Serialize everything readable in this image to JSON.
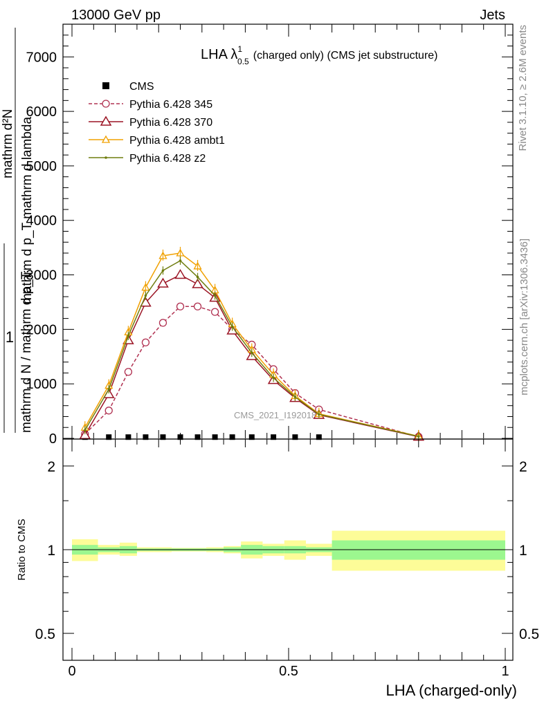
{
  "header": {
    "energy": "13000 GeV pp",
    "category": "Jets"
  },
  "side_labels": {
    "rivet": "Rivet 3.1.10, ≥ 2.6M events",
    "mcplots": "mcplots.cern.ch [arXiv:1306.3436]"
  },
  "chart_data": [
    {
      "type": "line",
      "title_main": "LHA λ",
      "title_sup": "1",
      "title_sub": "0.5",
      "title_rest": "(charged only) (CMS jet substructure)",
      "ylabel_top": "mathrm d²N",
      "ylabel_bottom": "mathrm d p_T mathrm d lambda",
      "ylabel_prefix": "1",
      "ylabel_prefix_den": "mathrm d N / mathrm d p_T",
      "ylim": [
        0,
        7600
      ],
      "yticks": [
        "0",
        "1000",
        "2000",
        "3000",
        "4000",
        "5000",
        "6000",
        "7000"
      ],
      "watermark": "CMS_2021_I1920187",
      "legend_position": "top-left",
      "x": [
        0.03,
        0.085,
        0.13,
        0.17,
        0.21,
        0.25,
        0.29,
        0.33,
        0.37,
        0.415,
        0.465,
        0.515,
        0.57,
        0.8
      ],
      "series": [
        {
          "name": "CMS",
          "marker": "square",
          "color": "#000000",
          "values": [
            10,
            10,
            10,
            10,
            10,
            10,
            10,
            10,
            10,
            10,
            10,
            10,
            10,
            null
          ]
        },
        {
          "name": "Pythia 6.428 345",
          "marker": "circle",
          "dash": true,
          "color": "#b03050",
          "values": [
            80,
            510,
            1220,
            1760,
            2120,
            2420,
            2420,
            2320,
            2000,
            1720,
            1270,
            830,
            530,
            30
          ]
        },
        {
          "name": "Pythia 6.428 370",
          "marker": "triangle",
          "color": "#9b1424",
          "values": [
            60,
            810,
            1800,
            2490,
            2840,
            3000,
            2830,
            2580,
            1980,
            1510,
            1070,
            740,
            430,
            30
          ]
        },
        {
          "name": "Pythia 6.428 ambt1",
          "marker": "triangle-small",
          "color": "#f0a000",
          "values": [
            200,
            970,
            1950,
            2770,
            3350,
            3400,
            3160,
            2720,
            2100,
            1630,
            1170,
            780,
            450,
            40
          ]
        },
        {
          "name": "Pythia 6.428 z2",
          "marker": "dot",
          "color": "#6f7d0f",
          "values": [
            150,
            900,
            1880,
            2620,
            3080,
            3260,
            2960,
            2620,
            2050,
            1570,
            1110,
            760,
            440,
            35
          ]
        }
      ]
    },
    {
      "type": "area",
      "ylabel": "Ratio to CMS",
      "xlabel": "LHA (charged-only)",
      "scale": "log",
      "ylim": [
        0.4,
        2.5
      ],
      "yticks": [
        "0.5",
        "1",
        "2"
      ],
      "xticks": [
        "0",
        "0.5",
        "1"
      ],
      "bins": [
        0,
        0.06,
        0.11,
        0.15,
        0.19,
        0.23,
        0.27,
        0.31,
        0.35,
        0.39,
        0.44,
        0.49,
        0.54,
        0.6,
        1.0
      ],
      "band_inner_low": [
        0.96,
        0.98,
        0.97,
        0.99,
        0.99,
        0.99,
        0.99,
        0.99,
        0.98,
        0.96,
        0.97,
        0.97,
        0.98,
        0.92
      ],
      "band_inner_high": [
        1.04,
        1.02,
        1.03,
        1.01,
        1.01,
        1.01,
        1.01,
        1.01,
        1.02,
        1.04,
        1.03,
        1.03,
        1.02,
        1.08
      ],
      "band_outer_low": [
        0.91,
        0.96,
        0.95,
        0.98,
        0.98,
        0.985,
        0.985,
        0.98,
        0.97,
        0.93,
        0.95,
        0.92,
        0.95,
        0.84
      ],
      "band_outer_high": [
        1.09,
        1.04,
        1.06,
        1.02,
        1.02,
        1.015,
        1.015,
        1.02,
        1.03,
        1.07,
        1.05,
        1.08,
        1.05,
        1.17
      ],
      "inner_color": "#9cf78f",
      "outer_color": "#fdfc98"
    }
  ]
}
